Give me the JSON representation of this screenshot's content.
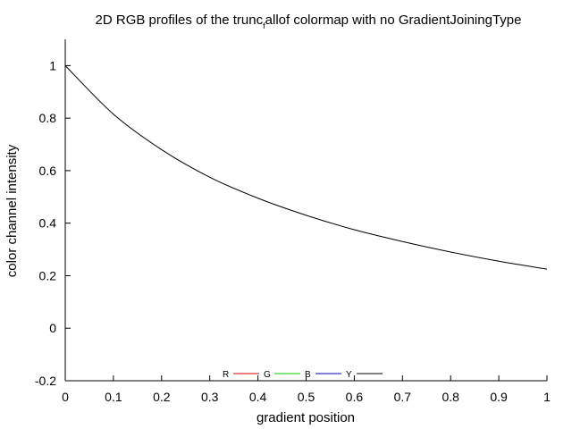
{
  "chart_data": {
    "type": "line",
    "title": "2D RGB profiles of the trunc",
    "title_subscript": "f",
    "title_rest": "allof colormap with no GradientJoiningType",
    "xlabel": "gradient position",
    "ylabel": "color channel intensity",
    "xlim": [
      0,
      1
    ],
    "ylim": [
      -0.2,
      1.1
    ],
    "x_ticks": [
      0,
      0.1,
      0.2,
      0.3,
      0.4,
      0.5,
      0.6,
      0.7,
      0.8,
      0.9,
      1
    ],
    "x_tick_labels": [
      "0",
      "0.1",
      "0.2",
      "0.3",
      "0.4",
      "0.5",
      "0.6",
      "0.7",
      "0.8",
      "0.9",
      "1"
    ],
    "y_ticks": [
      -0.2,
      0,
      0.2,
      0.4,
      0.6,
      0.8,
      1
    ],
    "y_tick_labels": [
      "-0.2",
      "0",
      "0.2",
      "0.4",
      "0.6",
      "0.8",
      "1"
    ],
    "grid": false,
    "legend_position": "bottom-center",
    "legend": [
      {
        "name": "R",
        "color": "#cc0000"
      },
      {
        "name": "G",
        "color": "#00cc00"
      },
      {
        "name": "B",
        "color": "#0000cc"
      },
      {
        "name": "Y",
        "color": "#000000"
      }
    ],
    "series": [
      {
        "name": "Y",
        "color": "#000000",
        "x": [
          0,
          0.1,
          0.2,
          0.3,
          0.4,
          0.5,
          0.6,
          0.7,
          0.8,
          0.9,
          1
        ],
        "values": [
          1.0,
          0.815,
          0.68,
          0.575,
          0.495,
          0.43,
          0.375,
          0.33,
          0.29,
          0.255,
          0.225
        ]
      }
    ]
  }
}
